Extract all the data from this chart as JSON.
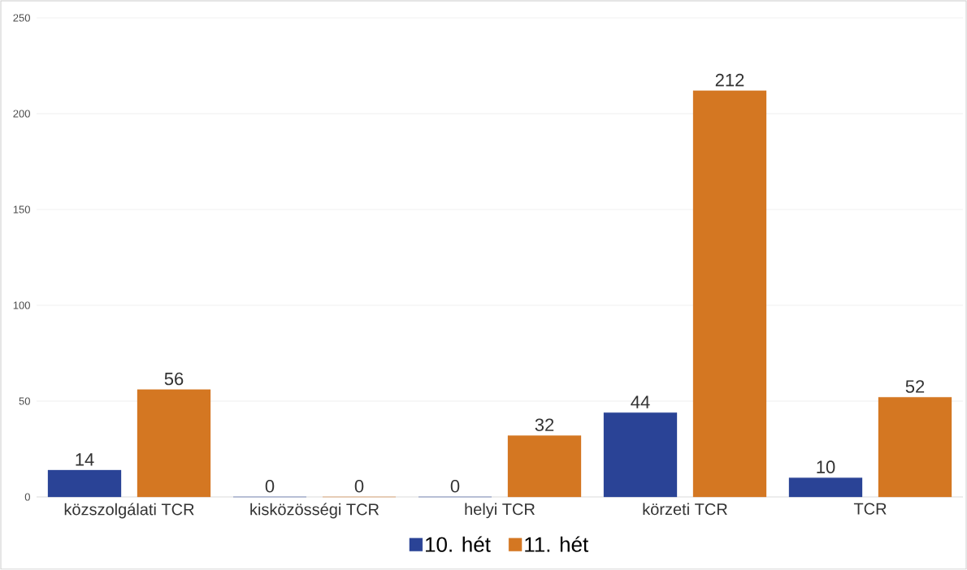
{
  "chart_data": {
    "type": "bar",
    "categories": [
      "közszolgálati TCR",
      "kisközösségi TCR",
      "helyi TCR",
      "körzeti TCR",
      "TCR"
    ],
    "series": [
      {
        "name": "10. hét",
        "color": "#2a4396",
        "values": [
          14,
          0,
          0,
          44,
          10
        ]
      },
      {
        "name": "11. hét",
        "color": "#d47722",
        "values": [
          56,
          0,
          32,
          212,
          52
        ]
      }
    ],
    "ylim": [
      0,
      250
    ],
    "yticks": [
      0,
      50,
      100,
      150,
      200,
      250
    ],
    "grid": "y",
    "legend": "bottom",
    "data_labels": true
  }
}
